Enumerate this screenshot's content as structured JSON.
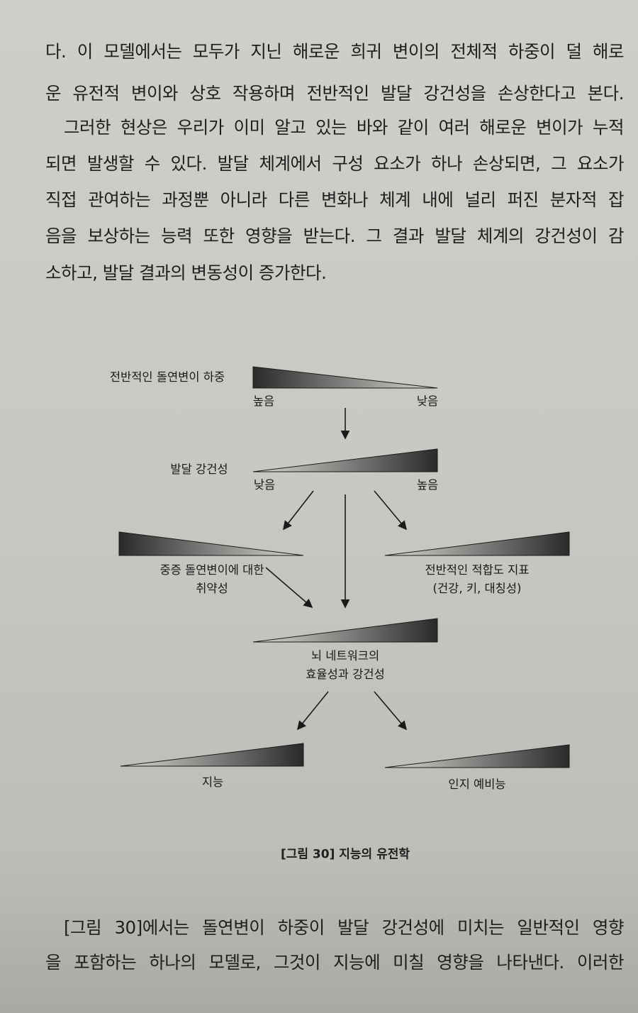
{
  "paragraph_top": {
    "lines": [
      "다. 이 모델에서는 모두가 지닌 해로운 희귀 변이의 전체적 하중이 덜 해로",
      "운 유전적 변이와 상호 작용하며 전반적인 발달 강건성을 손상한다고 본다.",
      "그러한 현상은 우리가 이미 알고 있는 바와 같이 여러 해로운 변이가 누적",
      "되면 발생할 수 있다. 발달 체계에서 구성 요소가 하나 손상되면, 그 요소가",
      "직접 관여하는 과정뿐 아니라 다른 변화나 체계 내에 널리 퍼진 분자적 잡",
      "음을 보상하는 능력 또한 영향을 받는다. 그 결과 발달 체계의 강건성이 감",
      "소하고, 발달 결과의 변동성이 증가한다."
    ]
  },
  "figure": {
    "mutation_load": {
      "label": "전반적인 돌연변이 하중",
      "left": "높음",
      "right": "낮음"
    },
    "robustness": {
      "label": "발달 강건성",
      "left": "낮음",
      "right": "높음"
    },
    "vulnerability": {
      "line1": "중증 돌연변이에 대한",
      "line2": "취약성"
    },
    "fitness": {
      "line1": "전반적인 적합도 지표",
      "line2": "(건강, 키, 대칭성)"
    },
    "brain": {
      "line1": "뇌 네트워크의",
      "line2": "효율성과 강건성"
    },
    "intelligence": {
      "label": "지능"
    },
    "reserve": {
      "label": "인지 예비능"
    },
    "caption": "[그림 30] 지능의 유전학"
  },
  "paragraph_bottom": {
    "lines": [
      "[그림 30]에서는 돌연변이 하중이 발달 강건성에 미치는 일반적인 영향",
      "을 포함하는 하나의 모델로, 그것이 지능에 미칠 영향을 나타낸다. 이러한"
    ]
  }
}
